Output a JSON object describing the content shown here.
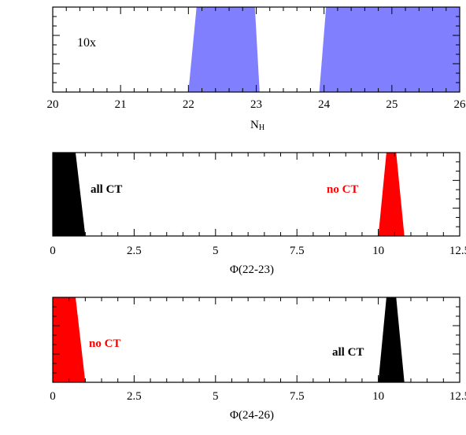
{
  "chart_data": [
    {
      "type": "area",
      "title": "",
      "xlabel": "N",
      "xlabel_sub": "H",
      "ylabel": "",
      "xlim": [
        20,
        26
      ],
      "xticks": [
        20,
        21,
        22,
        23,
        24,
        25,
        26
      ],
      "annotation": "10x",
      "series": [
        {
          "color": "#8080ff",
          "polygon": [
            [
              22.0,
              0
            ],
            [
              22.12,
              1
            ],
            [
              22.98,
              1
            ],
            [
              23.05,
              0
            ]
          ]
        },
        {
          "color": "#8080ff",
          "polygon": [
            [
              23.93,
              0
            ],
            [
              24.03,
              1
            ],
            [
              26.0,
              1
            ],
            [
              26.0,
              0
            ]
          ]
        }
      ]
    },
    {
      "type": "area",
      "title": "",
      "xlabel": "Φ(22-23)",
      "ylabel": "",
      "xlim": [
        0,
        12.5
      ],
      "xticks": [
        0,
        2.5,
        5,
        7.5,
        10,
        12.5
      ],
      "xticklabels": [
        "0",
        "2.5",
        "5",
        "7.5",
        "10",
        "12.5"
      ],
      "annotations": [
        {
          "text": "all CT",
          "color": "#000000"
        },
        {
          "text": "no CT",
          "color": "#ff0000"
        }
      ],
      "series": [
        {
          "name": "all CT",
          "color": "#000000",
          "polygon": [
            [
              0,
              0
            ],
            [
              0,
              1
            ],
            [
              0.7,
              1
            ],
            [
              1.0,
              0
            ]
          ]
        },
        {
          "name": "no CT",
          "color": "#ff0000",
          "polygon": [
            [
              10.0,
              0
            ],
            [
              10.25,
              1
            ],
            [
              10.55,
              1
            ],
            [
              10.8,
              0
            ]
          ]
        }
      ]
    },
    {
      "type": "area",
      "title": "",
      "xlabel": "Φ(24-26)",
      "ylabel": "",
      "xlim": [
        0,
        12.5
      ],
      "xticks": [
        0,
        2.5,
        5,
        7.5,
        10,
        12.5
      ],
      "xticklabels": [
        "0",
        "2.5",
        "5",
        "7.5",
        "10",
        "12.5"
      ],
      "annotations": [
        {
          "text": "no CT",
          "color": "#ff0000"
        },
        {
          "text": "all CT",
          "color": "#000000"
        }
      ],
      "series": [
        {
          "name": "no CT",
          "color": "#ff0000",
          "polygon": [
            [
              0,
              0
            ],
            [
              0,
              1
            ],
            [
              0.7,
              1
            ],
            [
              1.0,
              0
            ]
          ]
        },
        {
          "name": "all CT",
          "color": "#000000",
          "polygon": [
            [
              10.0,
              0
            ],
            [
              10.25,
              1
            ],
            [
              10.55,
              1
            ],
            [
              10.8,
              0
            ]
          ]
        }
      ]
    }
  ]
}
